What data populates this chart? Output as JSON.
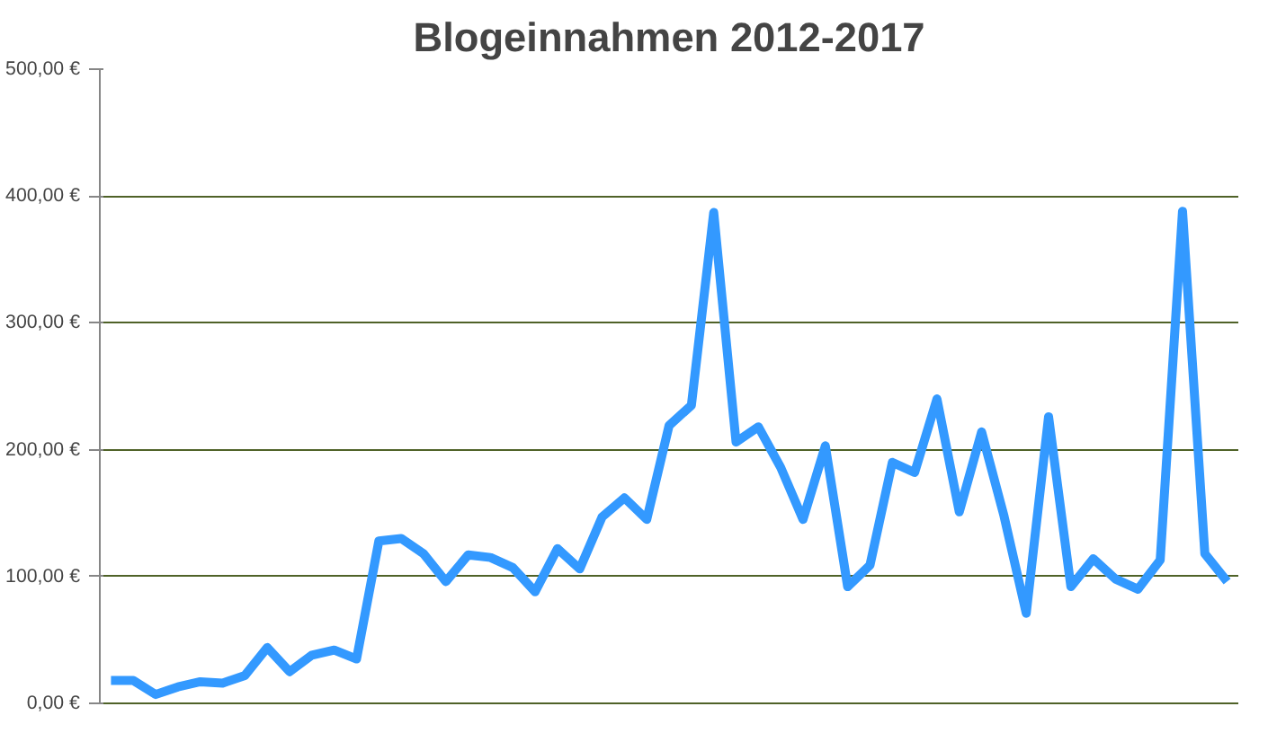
{
  "chart_data": {
    "type": "line",
    "title": "Blogeinnahmen 2012-2017",
    "categories": [
      null,
      null,
      null,
      null,
      null,
      null,
      null,
      null,
      null,
      null,
      null,
      null,
      null,
      null,
      null,
      null,
      null,
      null,
      null,
      null,
      null,
      null,
      null,
      null,
      null,
      null,
      null,
      null,
      null,
      null,
      null,
      null,
      null,
      null,
      null,
      null,
      null,
      null,
      null,
      null,
      null,
      null,
      null,
      null,
      null,
      null,
      null,
      null,
      null,
      null,
      null
    ],
    "series": [
      {
        "color": "#3399ff",
        "values": [
          18,
          18,
          7,
          13,
          17,
          16,
          22,
          44,
          25,
          38,
          42,
          35,
          128,
          130,
          118,
          96,
          117,
          115,
          107,
          88,
          122,
          106,
          147,
          162,
          145,
          219,
          235,
          387,
          206,
          218,
          186,
          145,
          203,
          92,
          109,
          190,
          182,
          240,
          151,
          214,
          148,
          71,
          226,
          92,
          114,
          98,
          90,
          113,
          388,
          118,
          96
        ]
      }
    ],
    "ylim": [
      0,
      500
    ],
    "yticks": [
      {
        "value": 0,
        "label": "0,00 €"
      },
      {
        "value": 100,
        "label": "100,00 €"
      },
      {
        "value": 200,
        "label": "200,00 €"
      },
      {
        "value": 300,
        "label": "300,00 €"
      },
      {
        "value": 400,
        "label": "400,00 €"
      },
      {
        "value": 500,
        "label": "500,00 €"
      }
    ],
    "grid": "y",
    "marker": "none",
    "line_style": "solid"
  }
}
